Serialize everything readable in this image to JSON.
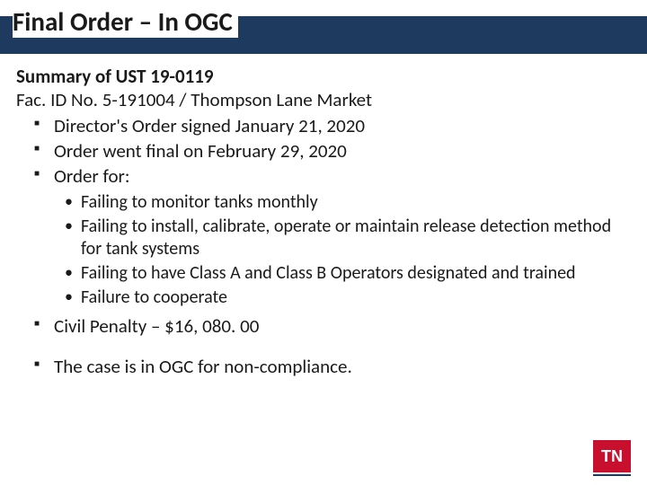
{
  "header": {
    "title": "Final Order – In OGC",
    "band_color": "#1f3a5f",
    "title_color": "#1a1a1a",
    "title_fontsize": 29
  },
  "content": {
    "summary_heading": "Summary of UST 19-0119",
    "facility_line": "Fac. ID No. 5-191004 / Thompson Lane Market",
    "bullets_level1": [
      "Director's Order signed January 21, 2020",
      "Order went final on February 29, 2020",
      "Order for:"
    ],
    "bullets_level2": [
      "Failing to monitor tanks monthly",
      "Failing to install, calibrate, operate or maintain release detection method for tank systems",
      "Failing to have Class A and Class B Operators designated and trained",
      "Failure to cooperate"
    ],
    "penalty_line": "Civil Penalty – $16, 080. 00",
    "final_line": "The case is in OGC for non-compliance."
  },
  "logo": {
    "text": "TN",
    "bg_color": "#c8102e",
    "text_color": "#ffffff",
    "underline_color": "#1f3a5f"
  },
  "styling": {
    "body_fontsize": 21,
    "sub_fontsize": 20,
    "text_color": "#1a1a1a",
    "background_color": "#ffffff",
    "square_bullet_color": "#1a1a1a",
    "dot_bullet_color": "#1a1a1a"
  }
}
